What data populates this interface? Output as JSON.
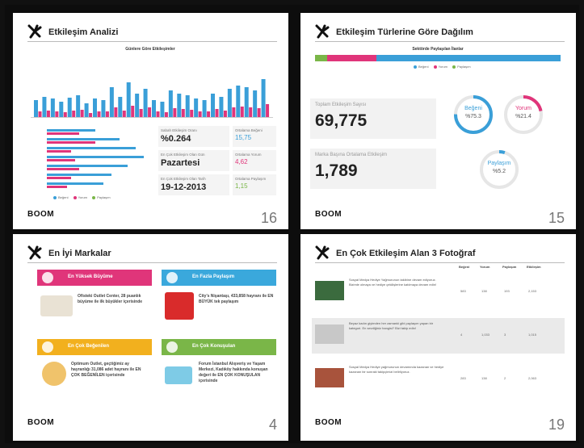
{
  "slides": [
    {
      "title": "Etkileşim Analizi",
      "page": "16",
      "brand": "BOOM",
      "chart_title": "Günlere Göre Etkileşimler",
      "stats": [
        {
          "label": "Sabah Etkileşim Oranı",
          "value": "%0.264"
        },
        {
          "label": "En Çok Etkileşim Olan Gün",
          "value": "Pazartesi"
        },
        {
          "label": "En Çok Etkileşim Olan Tarih",
          "value": "19-12-2013"
        }
      ],
      "mini_stats": [
        {
          "label": "Ortalama Beğeni",
          "value": "15,75"
        },
        {
          "label": "Ortalama Yorum",
          "value": "4,62"
        },
        {
          "label": "Ortalama Paylaşım",
          "value": "1,15"
        }
      ],
      "legend": [
        "Beğeni",
        "Yorum",
        "Paylaşım"
      ]
    },
    {
      "title": "Etkileşim Türlerine Göre Dağılım",
      "page": "15",
      "brand": "BOOM",
      "bar_title": "Sektörde Paylaşılan İlanlar",
      "legend": [
        "Beğeni",
        "Yorum",
        "Paylaşım"
      ],
      "total_label": "Toplam Etkileşim Sayısı",
      "total_value": "69,775",
      "avg_label": "Marka Başına Ortalama Etkileşim",
      "avg_value": "1,789",
      "rings": [
        {
          "label": "Beğeni",
          "value": "%75.3",
          "color": "#3a9fd8"
        },
        {
          "label": "Yorum",
          "value": "%21.4",
          "color": "#e0357a"
        },
        {
          "label": "Paylaşım",
          "value": "%5.2",
          "color": "#3a9fd8"
        }
      ]
    },
    {
      "title": "En İyi Markalar",
      "page": "4",
      "brand": "BOOM",
      "tags": [
        {
          "label": "En Yüksek Büyüme",
          "color": "#e0357a",
          "desc": "Ofisteki Outlet Center, 28 puanlık büyüme ile ilk büyükler içerisinde"
        },
        {
          "label": "En Fazla Paylaşım",
          "color": "#3aa8dc",
          "desc": "City's Nişantaşı, 433,858 hayranı ile EN BÜYÜK tek paylaşım"
        },
        {
          "label": "En Çok Beğenilen",
          "color": "#f2b01e",
          "desc": "Optimum Outlet, geçtiğimiz ay hayranlığı 31,086 adet hayranı ile EN ÇOK BEĞENİLEN içerisinde"
        },
        {
          "label": "En Çok Konuşulan",
          "color": "#7ab648",
          "desc": "Forum İstanbul Alışveriş ve Yaşam Merkezi, Kadıköy hakkında konuşan değeri ile EN ÇOK KONUŞULAN içerisinde"
        }
      ]
    },
    {
      "title": "En Çok Etkileşim Alan 3 Fotoğraf",
      "page": "19",
      "brand": "BOOM",
      "headers": [
        "Beğeni",
        "Yorum",
        "Paylaşım",
        "Etkileşim"
      ],
      "rows": [
        {
          "text": "Sosyal Medya Hediye Yağmurunun takibine devam ediyoruz. Bizimle olmaya ve hediye çekilişlerine katılmaya devam edin!",
          "cells": [
            "583",
            "138",
            "193",
            "2,153"
          ]
        },
        {
          "text": "Beyaz kadın giyimden her zamanki gibi paylaşım yapan bir kategori. En sevdiğiniz hangisi? Bizi takip edin!",
          "cells": [
            "4",
            "1,033",
            "3",
            "1,015"
          ]
        },
        {
          "text": "Sosyal Medya Hediye yağmurunun devamında kazanan ve hediye kazanan bir sonraki takipçimizi belirliyoruz.",
          "cells": [
            "283",
            "138",
            "2",
            "2,063"
          ]
        }
      ]
    }
  ]
}
